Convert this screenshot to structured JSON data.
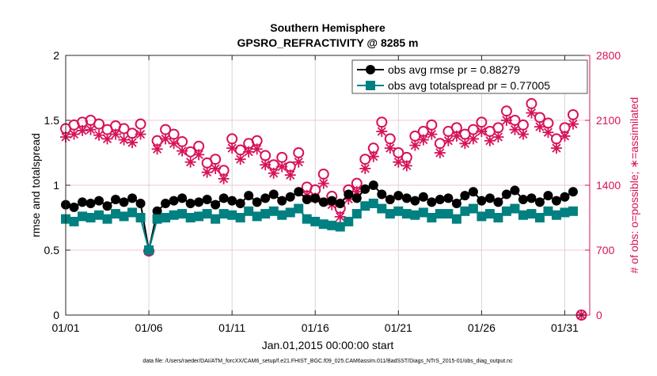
{
  "chart_data": {
    "type": "line",
    "title": "Southern Hemisphere",
    "subtitle": "GPSRO_REFRACTIVITY @ 8285 m",
    "xlabel": "Jan.01,2015 00:00:00 start",
    "ylabel": "rmse and totalspread",
    "ylabel_right": "# of obs: o=possible; ∗=assimilated",
    "footnote": "data file: /Users/raeder/DAI/ATM_forcXX/CAM6_setup/f.e21.FHIST_BGC.f09_025.CAM6assim.011/BadSST/Diags_NTrS_2015-01/obs_diag_output.nc",
    "x_unit": "days since 01/01",
    "x_start": 0,
    "x_step": 0.5,
    "xlim": [
      0,
      31.5
    ],
    "ylim": [
      0,
      2
    ],
    "ylim_right": [
      0,
      2800
    ],
    "xticks": [
      0,
      5,
      10,
      15,
      20,
      25,
      30
    ],
    "xtick_labels": [
      "01/01",
      "01/06",
      "01/11",
      "01/16",
      "01/21",
      "01/26",
      "01/31"
    ],
    "yticks": [
      0,
      0.5,
      1,
      1.5,
      2
    ],
    "ytick_labels": [
      "0",
      "0.5",
      "1",
      "1.5",
      "2"
    ],
    "yticks_right": [
      0,
      700,
      1400,
      2100,
      2800
    ],
    "ytick_labels_right": [
      "0",
      "700",
      "1400",
      "2100",
      "2800"
    ],
    "legend_position": "top-right",
    "colors": {
      "rmse": "#000000",
      "spread": "#008080",
      "counts": "#d6135a"
    },
    "series": [
      {
        "name": "obs avg rmse pr = 0.88279",
        "axis": "left",
        "values": [
          0.85,
          0.83,
          0.87,
          0.86,
          0.88,
          0.84,
          0.89,
          0.87,
          0.9,
          0.86,
          0.5,
          0.8,
          0.86,
          0.88,
          0.9,
          0.86,
          0.87,
          0.89,
          0.85,
          0.9,
          0.88,
          0.86,
          0.92,
          0.87,
          0.9,
          0.93,
          0.88,
          0.91,
          0.95,
          0.89,
          0.9,
          0.87,
          0.88,
          0.86,
          0.93,
          0.9,
          0.97,
          1.0,
          0.93,
          0.89,
          0.92,
          0.9,
          0.88,
          0.91,
          0.87,
          0.89,
          0.9,
          0.86,
          0.92,
          0.95,
          0.88,
          0.9,
          0.87,
          0.93,
          0.96,
          0.89,
          0.9,
          0.87,
          0.92,
          0.88,
          0.91,
          0.95,
          null
        ]
      },
      {
        "name": "obs avg totalspread pr = 0.77005",
        "axis": "left",
        "values": [
          0.74,
          0.72,
          0.76,
          0.75,
          0.77,
          0.74,
          0.78,
          0.76,
          0.79,
          0.75,
          0.5,
          0.74,
          0.75,
          0.77,
          0.78,
          0.75,
          0.76,
          0.78,
          0.74,
          0.78,
          0.77,
          0.75,
          0.8,
          0.76,
          0.78,
          0.8,
          0.77,
          0.79,
          0.82,
          0.74,
          0.72,
          0.7,
          0.69,
          0.68,
          0.72,
          0.78,
          0.84,
          0.86,
          0.82,
          0.78,
          0.8,
          0.78,
          0.77,
          0.79,
          0.75,
          0.78,
          0.78,
          0.74,
          0.8,
          0.82,
          0.76,
          0.78,
          0.75,
          0.8,
          0.82,
          0.77,
          0.78,
          0.75,
          0.8,
          0.77,
          0.79,
          0.8,
          null
        ]
      },
      {
        "name": "possible",
        "axis": "right",
        "marker": "circle",
        "values": [
          2010,
          2050,
          2080,
          2100,
          2060,
          2000,
          2040,
          2010,
          1960,
          2060,
          690,
          1880,
          2000,
          1950,
          1870,
          1760,
          1820,
          1640,
          1680,
          1560,
          1900,
          1780,
          1850,
          1880,
          1720,
          1620,
          1700,
          1600,
          1750,
          1380,
          1350,
          1520,
          1280,
          1150,
          1350,
          1420,
          1680,
          1800,
          2080,
          1900,
          1750,
          1700,
          1930,
          1980,
          2050,
          1850,
          1980,
          2020,
          1950,
          2000,
          2080,
          1980,
          2020,
          2200,
          2100,
          2050,
          2280,
          2130,
          2070,
          1900,
          2020,
          2160,
          0
        ]
      },
      {
        "name": "assimilated",
        "axis": "right",
        "marker": "asterisk",
        "values": [
          1920,
          1950,
          1990,
          2000,
          1940,
          1900,
          1950,
          1890,
          1860,
          1950,
          690,
          1790,
          1900,
          1850,
          1770,
          1650,
          1730,
          1540,
          1580,
          1470,
          1800,
          1680,
          1760,
          1790,
          1620,
          1530,
          1600,
          1510,
          1650,
          1290,
          1260,
          1420,
          1190,
          1060,
          1250,
          1330,
          1580,
          1710,
          1980,
          1800,
          1650,
          1610,
          1830,
          1890,
          1950,
          1750,
          1880,
          1930,
          1850,
          1900,
          1980,
          1880,
          1920,
          2100,
          2000,
          1950,
          2180,
          2030,
          1970,
          1800,
          1930,
          2060,
          0
        ]
      }
    ]
  }
}
